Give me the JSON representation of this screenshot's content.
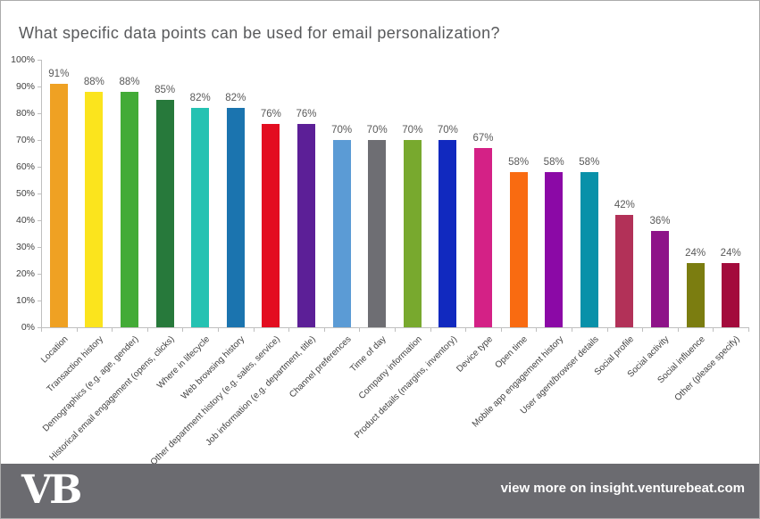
{
  "chart_data": {
    "type": "bar",
    "title": "What specific data points can be used for email personalization?",
    "categories": [
      "Location",
      "Transaction history",
      "Demographics (e.g. age, gender)",
      "Historical email engagement (opens, clicks)",
      "Where in lifecycle",
      "Web browsing history",
      "Other department history (e.g. sales, service)",
      "Job information (e.g. department, title)",
      "Channel preferences",
      "Time of day",
      "Company information",
      "Product details (margins, inventory)",
      "Device type",
      "Open time",
      "Mobile app engagement history",
      "User agent/browser details",
      "Social profile",
      "Social activity",
      "Social influence",
      "Other (please specify)"
    ],
    "values": [
      91,
      88,
      88,
      85,
      82,
      82,
      76,
      76,
      70,
      70,
      70,
      70,
      67,
      58,
      58,
      58,
      42,
      36,
      24,
      24
    ],
    "bar_colors": [
      "#efa123",
      "#fbe41d",
      "#43ab37",
      "#27793b",
      "#25c2b2",
      "#1b74af",
      "#e30d20",
      "#5c1f97",
      "#5b9bd5",
      "#6e6e73",
      "#78a92e",
      "#1129bf",
      "#d42186",
      "#f96b11",
      "#8b09a6",
      "#0991a9",
      "#b23158",
      "#8e1389",
      "#7b7d10",
      "#a30b3c"
    ],
    "value_labels": [
      "91%",
      "88%",
      "88%",
      "85%",
      "82%",
      "82%",
      "76%",
      "76%",
      "70%",
      "70%",
      "70%",
      "70%",
      "67%",
      "58%",
      "58%",
      "58%",
      "42%",
      "36%",
      "24%",
      "24%"
    ],
    "xlabel": "",
    "ylabel": "",
    "ylim": [
      0,
      100
    ],
    "ytick_step": 10,
    "ytick_labels": [
      "0%",
      "10%",
      "20%",
      "30%",
      "40%",
      "50%",
      "60%",
      "70%",
      "80%",
      "90%",
      "100%"
    ],
    "grid": false,
    "legend": false
  },
  "footer": {
    "logo": "VB",
    "text": "view more on insight.venturebeat.com"
  },
  "colors": {
    "title_text": "#58595b",
    "axis": "#bfbfbf",
    "axis_label_text": "#404040",
    "category_label_text": "#3f3f3f",
    "value_label_text": "#595959",
    "footer_background": "#6b6b70",
    "footer_text": "#ffffff",
    "page_border": "#ababab",
    "background": "#ffffff"
  }
}
